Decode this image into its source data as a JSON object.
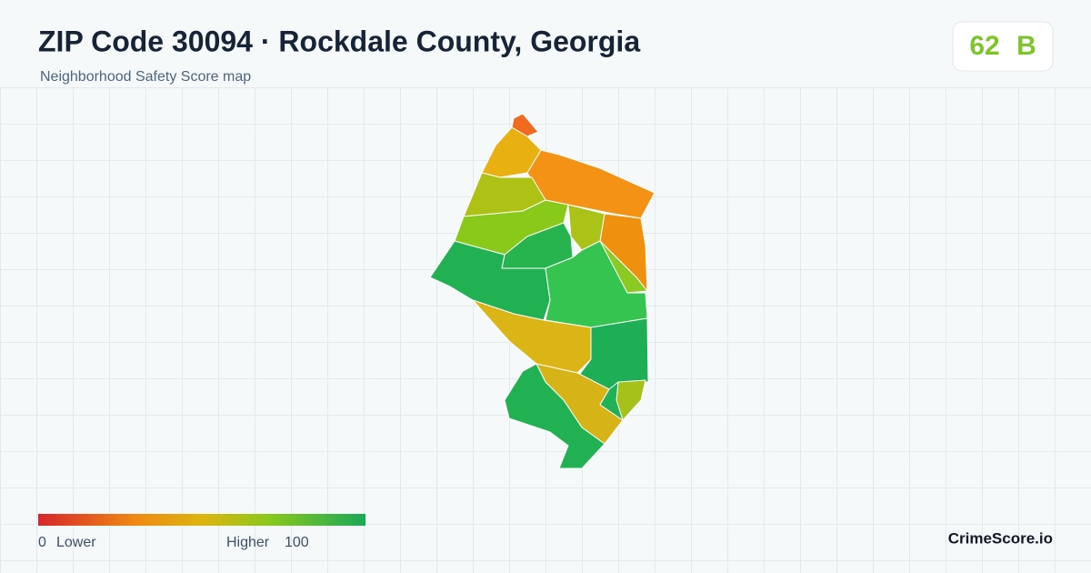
{
  "header": {
    "title": "ZIP Code 30094 · Rockdale County, Georgia",
    "subtitle": "Neighborhood Safety Score map"
  },
  "score": {
    "value": 62,
    "grade": "B"
  },
  "legend": {
    "min": 0,
    "min_label": "Lower",
    "max_label": "Higher",
    "max": 100
  },
  "footer": {
    "brand": "CrimeScore.io"
  }
}
